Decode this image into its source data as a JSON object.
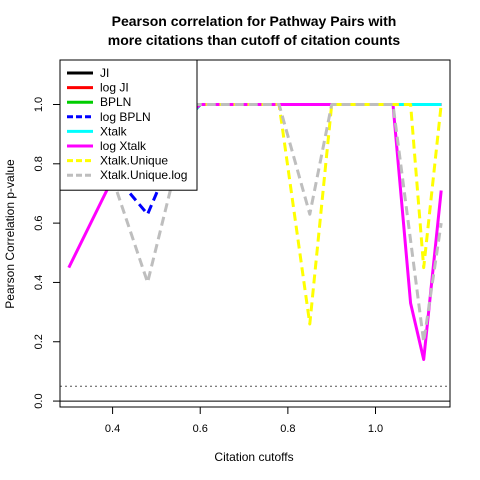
{
  "chart_data": {
    "type": "line",
    "title_line1": "Pearson correlation for Pathway Pairs with",
    "title_line2": "more citations than cutoff of citation counts",
    "xlabel": "Citation cutoffs",
    "ylabel": "Pearson Correlation p-value",
    "xlim": [
      0.28,
      1.17
    ],
    "ylim": [
      -0.02,
      1.15
    ],
    "x_ticks": [
      0.4,
      0.6,
      0.8,
      1.0
    ],
    "x_tick_labels": [
      "0.4",
      "0.6",
      "0.8",
      "1.0"
    ],
    "y_ticks": [
      0.0,
      0.2,
      0.4,
      0.6,
      0.8,
      1.0
    ],
    "y_tick_labels": [
      "0.0",
      "0.2",
      "0.4",
      "0.6",
      "0.8",
      "1.0"
    ],
    "legend_position": "top-left",
    "reference_lines": [
      {
        "y": 0.0,
        "style": "solid",
        "color": "#000000"
      },
      {
        "y": 0.05,
        "style": "dotted",
        "color": "#555555"
      }
    ],
    "series": [
      {
        "name": "JI",
        "color": "#000000",
        "dash": "solid",
        "points": [
          [
            0.48,
            0.8
          ],
          [
            0.6,
            1.0
          ],
          [
            1.15,
            1.0
          ]
        ]
      },
      {
        "name": "log JI",
        "color": "#ff0000",
        "dash": "solid",
        "points": [
          [
            0.48,
            0.8
          ],
          [
            0.6,
            1.0
          ],
          [
            1.15,
            1.0
          ]
        ]
      },
      {
        "name": "BPLN",
        "color": "#00cd00",
        "dash": "solid",
        "points": [
          [
            0.48,
            0.8
          ],
          [
            0.6,
            1.0
          ],
          [
            1.15,
            1.0
          ]
        ]
      },
      {
        "name": "log BPLN",
        "color": "#0000ff",
        "dash": "dashed",
        "points": [
          [
            0.44,
            0.7
          ],
          [
            0.48,
            0.63
          ],
          [
            0.5,
            0.7
          ],
          [
            0.58,
            1.0
          ],
          [
            1.15,
            1.0
          ]
        ]
      },
      {
        "name": "Xtalk",
        "color": "#00ffff",
        "dash": "solid",
        "points": [
          [
            0.48,
            0.8
          ],
          [
            0.6,
            1.0
          ],
          [
            1.15,
            1.0
          ]
        ]
      },
      {
        "name": "log Xtalk",
        "color": "#ff00ff",
        "dash": "solid",
        "points": [
          [
            0.3,
            0.45
          ],
          [
            0.4,
            0.75
          ],
          [
            0.6,
            1.0
          ],
          [
            1.04,
            1.0
          ],
          [
            1.08,
            0.33
          ],
          [
            1.11,
            0.14
          ],
          [
            1.15,
            0.71
          ]
        ]
      },
      {
        "name": "Xtalk.Unique",
        "color": "#ffff00",
        "dash": "dashed",
        "points": [
          [
            0.58,
            1.0
          ],
          [
            0.78,
            1.0
          ],
          [
            0.85,
            0.26
          ],
          [
            0.9,
            1.0
          ],
          [
            1.08,
            1.0
          ],
          [
            1.11,
            0.45
          ],
          [
            1.15,
            1.0
          ]
        ]
      },
      {
        "name": "Xtalk.Unique.log",
        "color": "#bebebe",
        "dash": "dashed",
        "points": [
          [
            0.4,
            0.75
          ],
          [
            0.48,
            0.4
          ],
          [
            0.58,
            1.0
          ],
          [
            0.78,
            1.0
          ],
          [
            0.85,
            0.63
          ],
          [
            0.9,
            1.0
          ],
          [
            1.04,
            1.0
          ],
          [
            1.11,
            0.2
          ],
          [
            1.15,
            0.6
          ]
        ]
      }
    ]
  }
}
